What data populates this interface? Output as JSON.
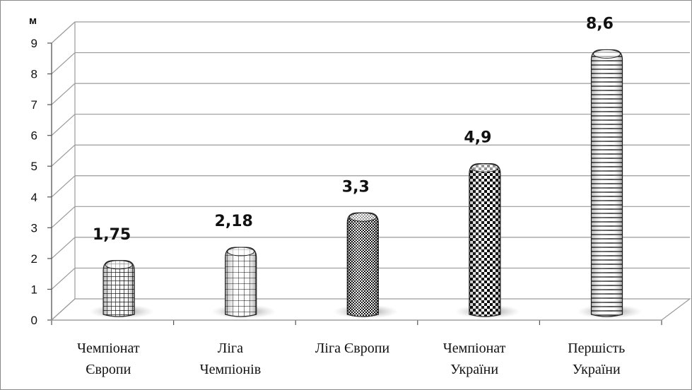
{
  "chart_data": {
    "type": "bar",
    "title": "",
    "xlabel": "",
    "ylabel": "",
    "y_unit": "м",
    "ylim": [
      0,
      9
    ],
    "y_ticks": [
      "0",
      "1",
      "2",
      "3",
      "4",
      "5",
      "6",
      "7",
      "8",
      "9"
    ],
    "grid": true,
    "categories": [
      [
        "Чемпіонат",
        "Європи"
      ],
      [
        "Ліга",
        "Чемпіонів"
      ],
      [
        "Ліга Європи"
      ],
      [
        "Чемпіонат",
        "України"
      ],
      [
        "Першість",
        "України"
      ]
    ],
    "values": [
      1.75,
      2.18,
      3.3,
      4.9,
      8.6
    ],
    "data_labels": [
      "1,75",
      "2,18",
      "3,3",
      "4,9",
      "8,6"
    ],
    "bar_patterns": [
      "small-grid",
      "large-grid",
      "fine-check",
      "coarse-check",
      "horizontal-stripes"
    ],
    "colors": {
      "ink": "#000000",
      "grid": "#9a9a9a",
      "wall_shadow": "#b8b8b8"
    }
  }
}
